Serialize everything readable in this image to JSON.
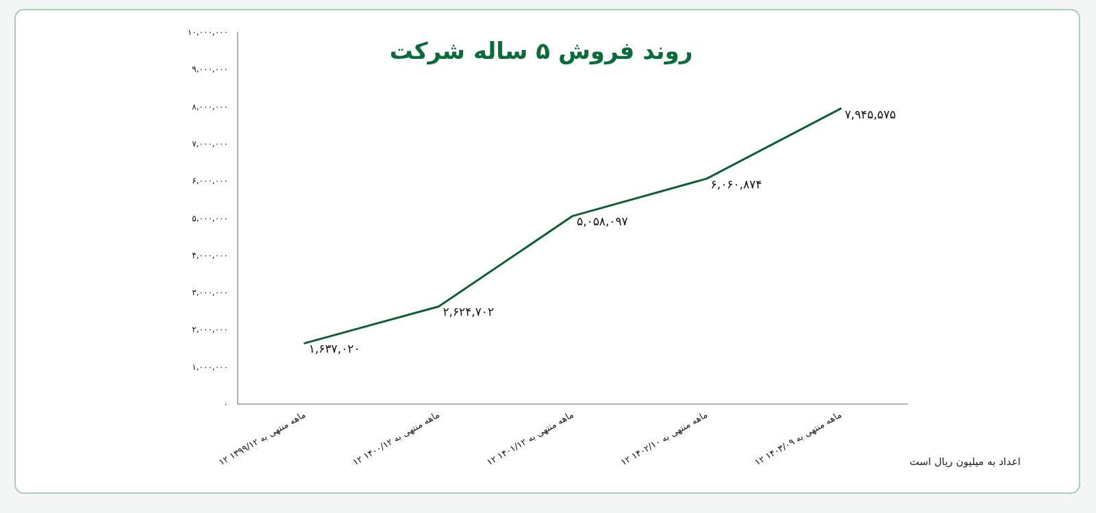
{
  "chart_data": {
    "type": "line",
    "title": "روند فروش ۵ ساله شرکت",
    "categories": [
      "۱۲ ماهه منتهی به ۱۳۹۹/۱۲",
      "۱۲ ماهه منتهی به ۱۴۰۰/۱۲",
      "۱۲ ماهه منتهی به ۱۴۰۱/۱۲",
      "۱۲ ماهه منتهی به ۱۴۰۲/۱۰",
      "۱۲ ماهه منتهی به ۱۴۰۳/۰۹"
    ],
    "series": [
      {
        "color": "#0e5e33",
        "values": [
          1637020,
          2624702,
          5058097,
          6060874,
          7945575
        ],
        "value_labels": [
          "۱,۶۳۷,۰۲۰",
          "۲,۶۲۴,۷۰۲",
          "۵,۰۵۸,۰۹۷",
          "۶,۰۶۰,۸۷۴",
          "۷,۹۴۵,۵۷۵"
        ]
      }
    ],
    "ylim": [
      0,
      10000000
    ],
    "yticks": [
      {
        "value": 0,
        "label": "۰"
      },
      {
        "value": 1000000,
        "label": "۱,۰۰۰,۰۰۰"
      },
      {
        "value": 2000000,
        "label": "۲,۰۰۰,۰۰۰"
      },
      {
        "value": 3000000,
        "label": "۳,۰۰۰,۰۰۰"
      },
      {
        "value": 4000000,
        "label": "۴,۰۰۰,۰۰۰"
      },
      {
        "value": 5000000,
        "label": "۵,۰۰۰,۰۰۰"
      },
      {
        "value": 6000000,
        "label": "۶,۰۰۰,۰۰۰"
      },
      {
        "value": 7000000,
        "label": "۷,۰۰۰,۰۰۰"
      },
      {
        "value": 8000000,
        "label": "۸,۰۰۰,۰۰۰"
      },
      {
        "value": 9000000,
        "label": "۹,۰۰۰,۰۰۰"
      },
      {
        "value": 10000000,
        "label": "۱۰,۰۰۰,۰۰۰"
      }
    ],
    "grid": false,
    "marker": "none",
    "line_style": "solid",
    "annotations": [
      "اعداد به میلیون ریال است"
    ]
  }
}
